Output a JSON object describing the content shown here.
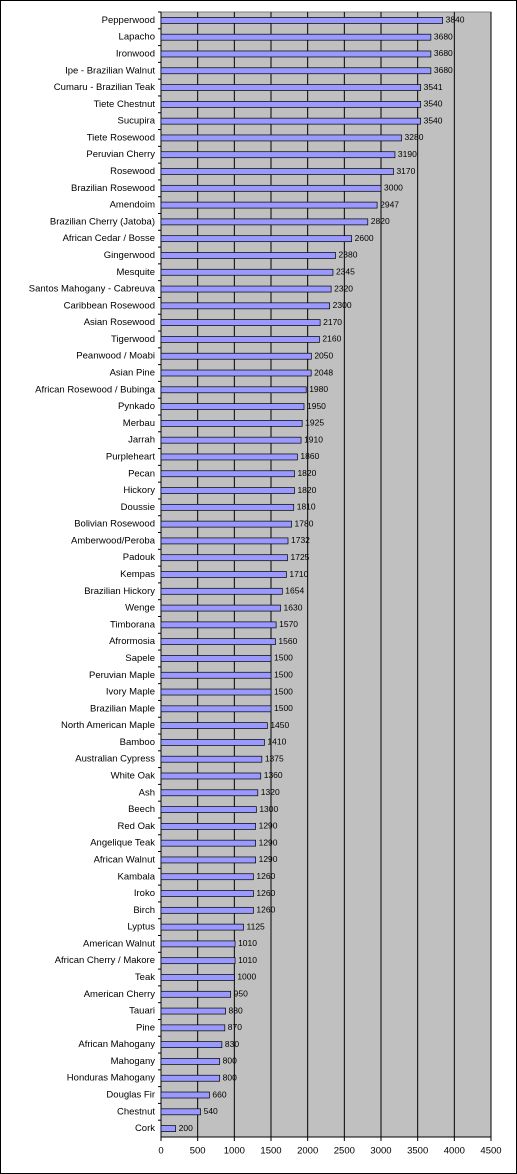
{
  "chart_data": {
    "type": "bar",
    "orientation": "horizontal",
    "categories": [
      "Pepperwood",
      "Lapacho",
      "Ironwood",
      "Ipe - Brazilian Walnut",
      "Cumaru - Brazilian Teak",
      "Tiete Chestnut",
      "Sucupira",
      "Tiete Rosewood",
      "Peruvian Cherry",
      "Rosewood",
      "Brazilian Rosewood",
      "Amendoim",
      "Brazilian Cherry (Jatoba)",
      "African Cedar / Bosse",
      "Gingerwood",
      "Mesquite",
      "Santos Mahogany - Cabreuva",
      "Caribbean Rosewood",
      "Asian Rosewood",
      "Tigerwood",
      "Peanwood / Moabi",
      "Asian Pine",
      "African Rosewood / Bubinga",
      "Pynkado",
      "Merbau",
      "Jarrah",
      "Purpleheart",
      "Pecan",
      "Hickory",
      "Doussie",
      "Bolivian Rosewood",
      "Amberwood/Peroba",
      "Padouk",
      "Kempas",
      "Brazilian Hickory",
      "Wenge",
      "Timborana",
      "Afrormosia",
      "Sapele",
      "Peruvian Maple",
      "Ivory Maple",
      "Brazilian Maple",
      "North American Maple",
      "Bamboo",
      "Australian Cypress",
      "White Oak",
      "Ash",
      "Beech",
      "Red Oak",
      "Angelique Teak",
      "African Walnut",
      "Kambala",
      "Iroko",
      "Birch",
      "Lyptus",
      "American Walnut",
      "African Cherry / Makore",
      "Teak",
      "American Cherry",
      "Tauari",
      "Pine",
      "African Mahogany",
      "Mahogany",
      "Honduras Mahogany",
      "Douglas Fir",
      "Chestnut",
      "Cork"
    ],
    "values": [
      3840,
      3680,
      3680,
      3680,
      3541,
      3540,
      3540,
      3280,
      3190,
      3170,
      3000,
      2947,
      2820,
      2600,
      2380,
      2345,
      2320,
      2300,
      2170,
      2160,
      2050,
      2048,
      1980,
      1950,
      1925,
      1910,
      1860,
      1820,
      1820,
      1810,
      1780,
      1732,
      1725,
      1710,
      1654,
      1630,
      1570,
      1560,
      1500,
      1500,
      1500,
      1500,
      1450,
      1410,
      1375,
      1360,
      1320,
      1300,
      1290,
      1290,
      1290,
      1260,
      1260,
      1260,
      1125,
      1010,
      1010,
      1000,
      950,
      880,
      870,
      830,
      800,
      800,
      660,
      540,
      200
    ],
    "color": "#9999ff",
    "plot_background": "#c0c0c0",
    "xlim": [
      0,
      4500
    ],
    "xticks": [
      0,
      500,
      1000,
      1500,
      2000,
      2500,
      3000,
      3500,
      4000,
      4500
    ],
    "grid": true
  }
}
